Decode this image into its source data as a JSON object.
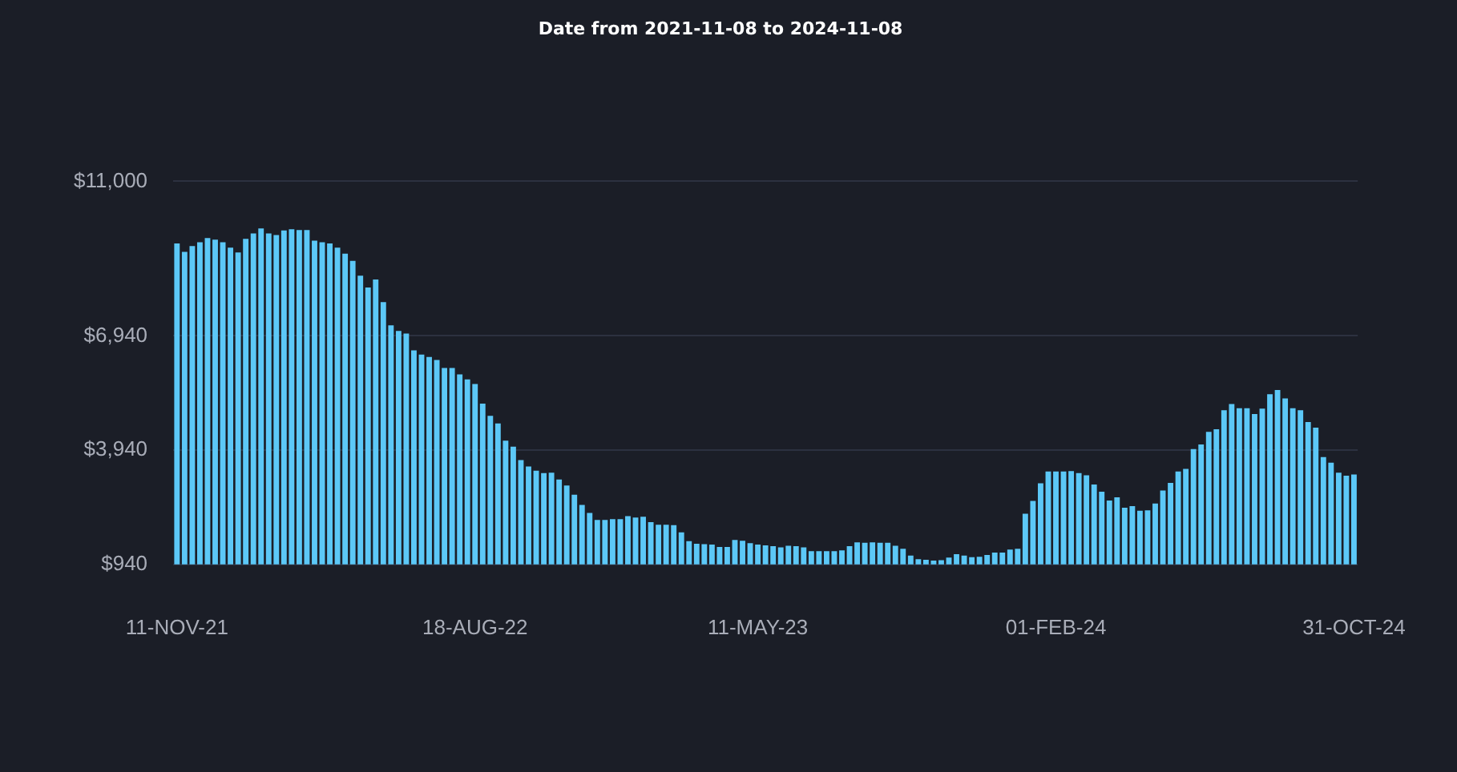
{
  "chart_data": {
    "type": "bar",
    "title": "Date from 2021-11-08 to 2024-11-08",
    "categories": [
      "11-NOV-21",
      null,
      null,
      null,
      null,
      null,
      null,
      null,
      null,
      null,
      null,
      null,
      null,
      null,
      null,
      null,
      null,
      null,
      null,
      null,
      null,
      null,
      null,
      null,
      null,
      null,
      null,
      null,
      null,
      null,
      null,
      null,
      null,
      null,
      null,
      null,
      null,
      null,
      null,
      "18-AUG-22",
      null,
      null,
      null,
      null,
      null,
      null,
      null,
      null,
      null,
      null,
      null,
      null,
      null,
      null,
      null,
      null,
      null,
      null,
      null,
      null,
      null,
      null,
      null,
      null,
      null,
      null,
      null,
      null,
      null,
      null,
      null,
      null,
      null,
      null,
      null,
      null,
      "11-MAY-23",
      null,
      null,
      null,
      null,
      null,
      null,
      null,
      null,
      null,
      null,
      null,
      null,
      null,
      null,
      null,
      null,
      null,
      null,
      null,
      null,
      null,
      null,
      null,
      null,
      null,
      null,
      null,
      null,
      null,
      null,
      null,
      null,
      null,
      null,
      null,
      null,
      null,
      null,
      "01-FEB-24",
      null,
      null,
      null,
      null,
      null,
      null,
      null,
      null,
      null,
      null,
      null,
      null,
      null,
      null,
      null,
      null,
      null,
      null,
      null,
      null,
      null,
      null,
      null,
      null,
      null,
      null,
      null,
      null,
      null,
      null,
      null,
      null,
      null,
      null,
      null,
      null,
      null,
      null,
      "31-OCT-24"
    ],
    "values": [
      9370,
      9150,
      9300,
      9400,
      9510,
      9470,
      9400,
      9260,
      9130,
      9490,
      9630,
      9760,
      9630,
      9590,
      9710,
      9740,
      9720,
      9720,
      9440,
      9400,
      9370,
      9260,
      9100,
      8910,
      8520,
      8210,
      8420,
      7830,
      7220,
      7070,
      7000,
      6560,
      6450,
      6390,
      6310,
      6100,
      6100,
      5930,
      5800,
      5680,
      5160,
      4840,
      4640,
      4190,
      4030,
      3680,
      3510,
      3400,
      3340,
      3350,
      3170,
      3010,
      2770,
      2500,
      2290,
      2110,
      2110,
      2130,
      2130,
      2210,
      2170,
      2190,
      2050,
      1980,
      1980,
      1970,
      1780,
      1550,
      1480,
      1470,
      1460,
      1400,
      1400,
      1580,
      1560,
      1500,
      1460,
      1440,
      1420,
      1390,
      1430,
      1420,
      1390,
      1290,
      1290,
      1290,
      1290,
      1310,
      1420,
      1520,
      1510,
      1520,
      1510,
      1510,
      1430,
      1350,
      1170,
      1080,
      1060,
      1040,
      1050,
      1120,
      1210,
      1170,
      1130,
      1140,
      1190,
      1250,
      1250,
      1330,
      1350,
      2270,
      2610,
      3070,
      3380,
      3380,
      3380,
      3390,
      3340,
      3280,
      3040,
      2850,
      2620,
      2700,
      2430,
      2470,
      2350,
      2360,
      2540,
      2880,
      3080,
      3380,
      3450,
      3970,
      4090,
      4420,
      4490,
      4990,
      5150,
      5040,
      5040,
      4890,
      5030,
      5410,
      5520,
      5300,
      5040,
      4990,
      4680,
      4530,
      3760,
      3610,
      3350,
      3270,
      3300
    ],
    "color": "#5cc8f7",
    "ylim": [
      940,
      11000
    ],
    "yticks": [
      {
        "value": 940,
        "label": "$940"
      },
      {
        "value": 3940,
        "label": "$3,940"
      },
      {
        "value": 6940,
        "label": "$6,940"
      },
      {
        "value": 11000,
        "label": "$11,000"
      }
    ],
    "grid": "y"
  }
}
